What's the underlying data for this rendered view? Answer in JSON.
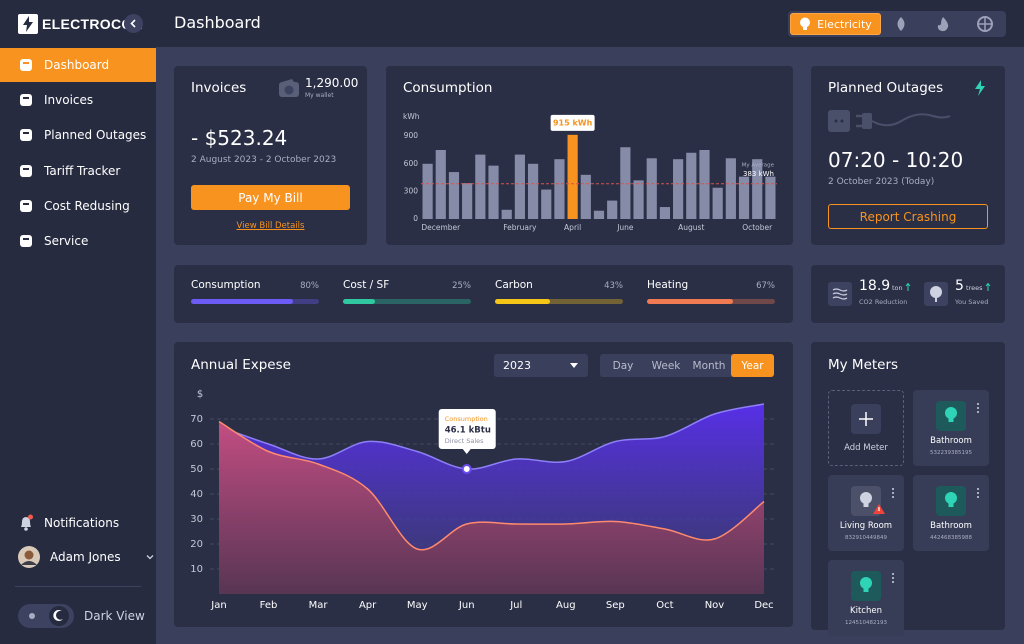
{
  "brand": "ELECTROCON",
  "sidebar": {
    "nav": [
      "Dashboard",
      "Invoices",
      "Planned Outages",
      "Tariff Tracker",
      "Cost Redusing",
      "Service"
    ],
    "notifications": "Notifications",
    "user": "Adam Jones",
    "theme": "Dark View"
  },
  "header": {
    "title": "Dashboard",
    "tab": "Electricity"
  },
  "invoices": {
    "title": "Invoices",
    "wallet": "1,290.00",
    "wallet_label": "My wallet",
    "amount": "- $523.24",
    "period": "2 August 2023 - 2 October 2023",
    "button": "Pay My Bill",
    "link": "View Bill Details"
  },
  "outages": {
    "title": "Planned Outages",
    "time": "07:20 - 10:20",
    "date": "2 October 2023 (Today)",
    "button": "Report Crashing"
  },
  "co2": {
    "value": "18.9",
    "unit": "ton",
    "label": "CO2 Reduction",
    "trees": "5",
    "trees_unit": "trees",
    "trees_label": "You Saved"
  },
  "meters": {
    "title": "My Meters",
    "add": "Add Meter",
    "items": [
      {
        "name": "Bathroom",
        "id": "532239385195",
        "status": "ok"
      },
      {
        "name": "Living Room",
        "id": "832910449849",
        "status": "warning"
      },
      {
        "name": "Bathroom",
        "id": "442468385988",
        "status": "ok"
      },
      {
        "name": "Kitchen",
        "id": "124510482193",
        "status": "ok"
      }
    ]
  },
  "chart_data": [
    {
      "type": "bar",
      "title": "Consumption",
      "y_label": "kWh",
      "categories": [
        null,
        "December",
        null,
        null,
        null,
        null,
        null,
        "February",
        null,
        null,
        null,
        "April",
        null,
        null,
        null,
        "June",
        null,
        null,
        null,
        null,
        "August",
        null,
        null,
        null,
        null,
        "October",
        null
      ],
      "values": [
        600,
        750,
        510,
        390,
        700,
        580,
        100,
        700,
        600,
        320,
        650,
        915,
        480,
        90,
        200,
        780,
        420,
        660,
        130,
        650,
        720,
        750,
        340,
        660,
        460,
        650,
        460
      ],
      "value_labels": [
        null,
        null,
        null,
        null,
        null,
        null,
        null,
        null,
        null,
        null,
        null,
        "915 kWh",
        null,
        null,
        null,
        null,
        null,
        null,
        null,
        null,
        null,
        null,
        null,
        null,
        null,
        null,
        null
      ],
      "color": "#868ca8",
      "highlight_color": "#f7931e",
      "average": {
        "label": "My Average",
        "value": 383,
        "value_label": "383 kWh",
        "color": "#d9534f"
      },
      "ylim": [
        0,
        1000
      ],
      "yticks": [
        0,
        300,
        600,
        900
      ]
    },
    {
      "type": "progress",
      "categories": [
        "Consumption",
        "Cost / SF",
        "Carbon",
        "Heating"
      ],
      "values": [
        80,
        25,
        43,
        67
      ],
      "value_labels": [
        "80%",
        "25%",
        "43%",
        "67%"
      ],
      "colors": [
        "#6c5cf5",
        "#2fc8a0",
        "#f5c518",
        "#f07a52"
      ],
      "ylim": [
        0,
        100
      ]
    },
    {
      "type": "area",
      "title": "Annual Expese",
      "y_label": "$",
      "year": "2023",
      "ranges": [
        "Day",
        "Week",
        "Month",
        "Year"
      ],
      "categories": [
        "Jan",
        "Feb",
        "Mar",
        "Apr",
        "May",
        "Jun",
        "Jul",
        "Aug",
        "Sep",
        "Oct",
        "Nov",
        "Dec"
      ],
      "series": [
        {
          "color": "#6a4cf0",
          "values": [
            67,
            60,
            54,
            61,
            57,
            50,
            54,
            53,
            61,
            63,
            72,
            76
          ]
        },
        {
          "color": "#e0637a",
          "values": [
            69,
            57,
            52,
            42,
            18,
            28,
            28,
            28,
            29,
            26,
            22,
            37
          ]
        }
      ],
      "tooltip": {
        "index": 5,
        "title": "Consumption",
        "value": "46.1 kBtu",
        "label": "Direct Sales"
      },
      "ylim": [
        0,
        80
      ],
      "yticks": [
        10,
        20,
        30,
        40,
        50,
        60,
        70
      ],
      "grid": true
    }
  ]
}
